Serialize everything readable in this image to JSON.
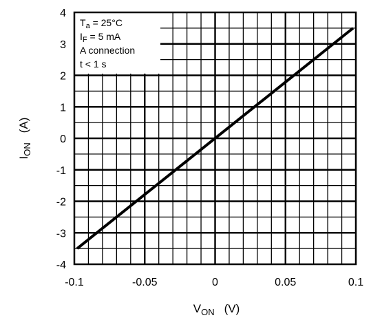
{
  "chart_data": {
    "type": "line",
    "title": "",
    "xlabel": {
      "main": "V",
      "sub": "ON",
      "unit": "(V)"
    },
    "ylabel": {
      "main": "I",
      "sub": "ON",
      "unit": "(A)"
    },
    "xlim": [
      -0.1,
      0.1
    ],
    "ylim": [
      -4,
      4
    ],
    "x_ticks": [
      -0.1,
      -0.05,
      0,
      0.05,
      0.1
    ],
    "x_tick_labels": [
      "-0.1",
      "-0.05",
      "0",
      "0.05",
      "0.1"
    ],
    "y_ticks": [
      -4,
      -3,
      -2,
      -1,
      0,
      1,
      2,
      3,
      4
    ],
    "y_tick_labels": [
      "-4",
      "-3",
      "-2",
      "-1",
      "0",
      "1",
      "2",
      "3",
      "4"
    ],
    "grid": true,
    "series": [
      {
        "x": [
          -0.098,
          0.098
        ],
        "y": [
          -3.5,
          3.5
        ],
        "color": "#000000"
      }
    ],
    "annotation": {
      "placement": "top-left",
      "lines": [
        {
          "main": "T",
          "sub": "a",
          "rest": " = 25°C"
        },
        {
          "main": "I",
          "sub": "F",
          "rest": " = 5 mA"
        },
        {
          "main": "A connection",
          "sub": "",
          "rest": ""
        },
        {
          "main": "t < 1 s",
          "sub": "",
          "rest": ""
        }
      ]
    }
  }
}
